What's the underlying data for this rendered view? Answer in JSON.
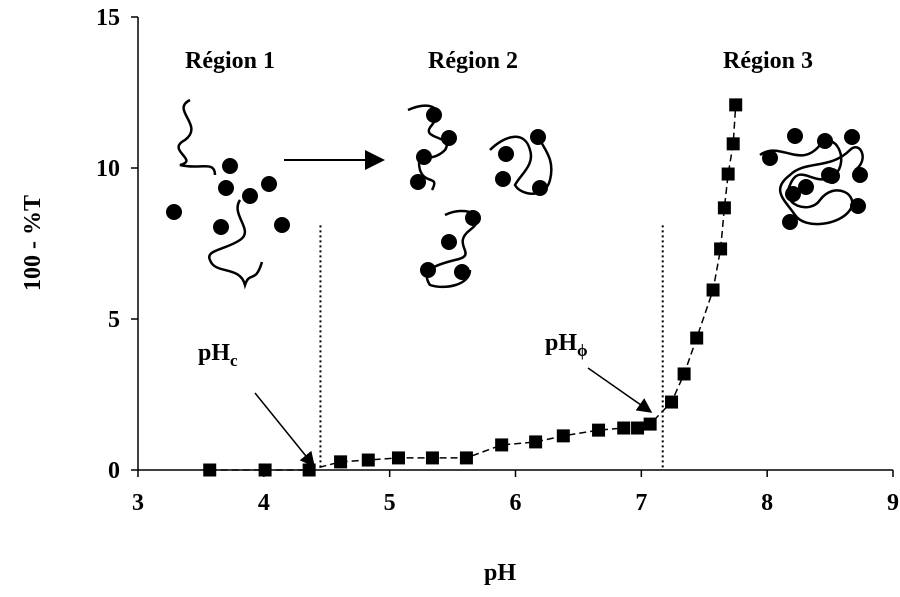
{
  "chart_data": {
    "type": "line",
    "xlabel": "pH",
    "ylabel": "100 - %T",
    "x": [
      3.57,
      4.01,
      4.36,
      4.61,
      4.83,
      5.07,
      5.34,
      5.61,
      5.89,
      6.16,
      6.38,
      6.66,
      6.86,
      6.97,
      7.07,
      7.24,
      7.34,
      7.44,
      7.57,
      7.63,
      7.66,
      7.69,
      7.73,
      7.75
    ],
    "series": [
      {
        "color": "#000000",
        "marker": "square",
        "linestyle": "dashed",
        "values": [
          0,
          0,
          0,
          0.27,
          0.33,
          0.4,
          0.4,
          0.4,
          0.83,
          0.93,
          1.13,
          1.32,
          1.39,
          1.39,
          1.52,
          2.25,
          3.18,
          4.37,
          5.96,
          7.32,
          8.68,
          9.8,
          10.8,
          12.09
        ]
      }
    ],
    "xlim": [
      3,
      9
    ],
    "xticks": [
      3,
      4,
      5,
      6,
      7,
      8,
      9
    ],
    "ylim": [
      0,
      15
    ],
    "yticks": [
      0,
      5,
      10,
      15
    ],
    "grid": false,
    "reference_lines": [
      {
        "x": 4.45,
        "y_top": 8.1
      },
      {
        "x": 7.17,
        "y_top": 8.1
      }
    ],
    "annotations": [
      {
        "text": "Région 1"
      },
      {
        "text": "Région 2"
      },
      {
        "text": "Région 3"
      },
      {
        "text": "pH",
        "sub": "c"
      },
      {
        "text": "pH",
        "sub": "ϕ"
      }
    ]
  }
}
